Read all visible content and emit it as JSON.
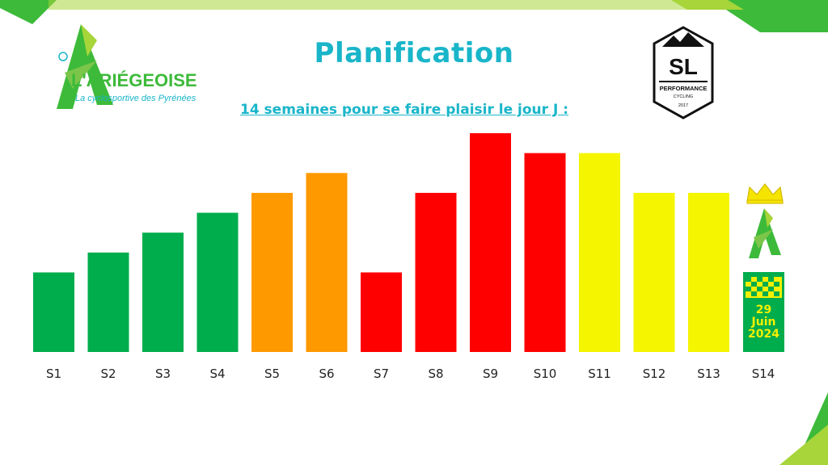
{
  "title": "Planification",
  "subtitle": "14 semaines pour se faire plaisir le jour J :",
  "logo_left": {
    "name": "L'ARIÉGEOISE",
    "tagline": "La cyclosportive des Pyrénées"
  },
  "logo_right": {
    "initials": "SL",
    "line1": "PERFORMANCE",
    "line2": "CYCLING",
    "year": "2017"
  },
  "race_day": {
    "day": "29",
    "month": "Juin",
    "year": "2024"
  },
  "colors": {
    "green": "#00ad4c",
    "orange": "#ff9900",
    "red": "#ff0000",
    "yellow": "#f5f500",
    "title": "#19b5c9",
    "deco_green": "#3dba3a",
    "deco_lime": "#a7d53a"
  },
  "chart_data": {
    "type": "bar",
    "title": "",
    "xlabel": "",
    "ylabel": "",
    "categories": [
      "S1",
      "S2",
      "S3",
      "S4",
      "S5",
      "S6",
      "S7",
      "S8",
      "S9",
      "S10",
      "S11",
      "S12",
      "S13",
      "S14"
    ],
    "values": [
      4,
      5,
      6,
      7,
      8,
      9,
      4,
      8,
      11,
      10,
      10,
      8,
      8,
      4
    ],
    "bar_colors": [
      "green",
      "green",
      "green",
      "green",
      "orange",
      "orange",
      "red",
      "red",
      "red",
      "red",
      "yellow",
      "yellow",
      "yellow",
      "green"
    ],
    "ylim": [
      0,
      11
    ],
    "grid": false,
    "legend": "none"
  }
}
